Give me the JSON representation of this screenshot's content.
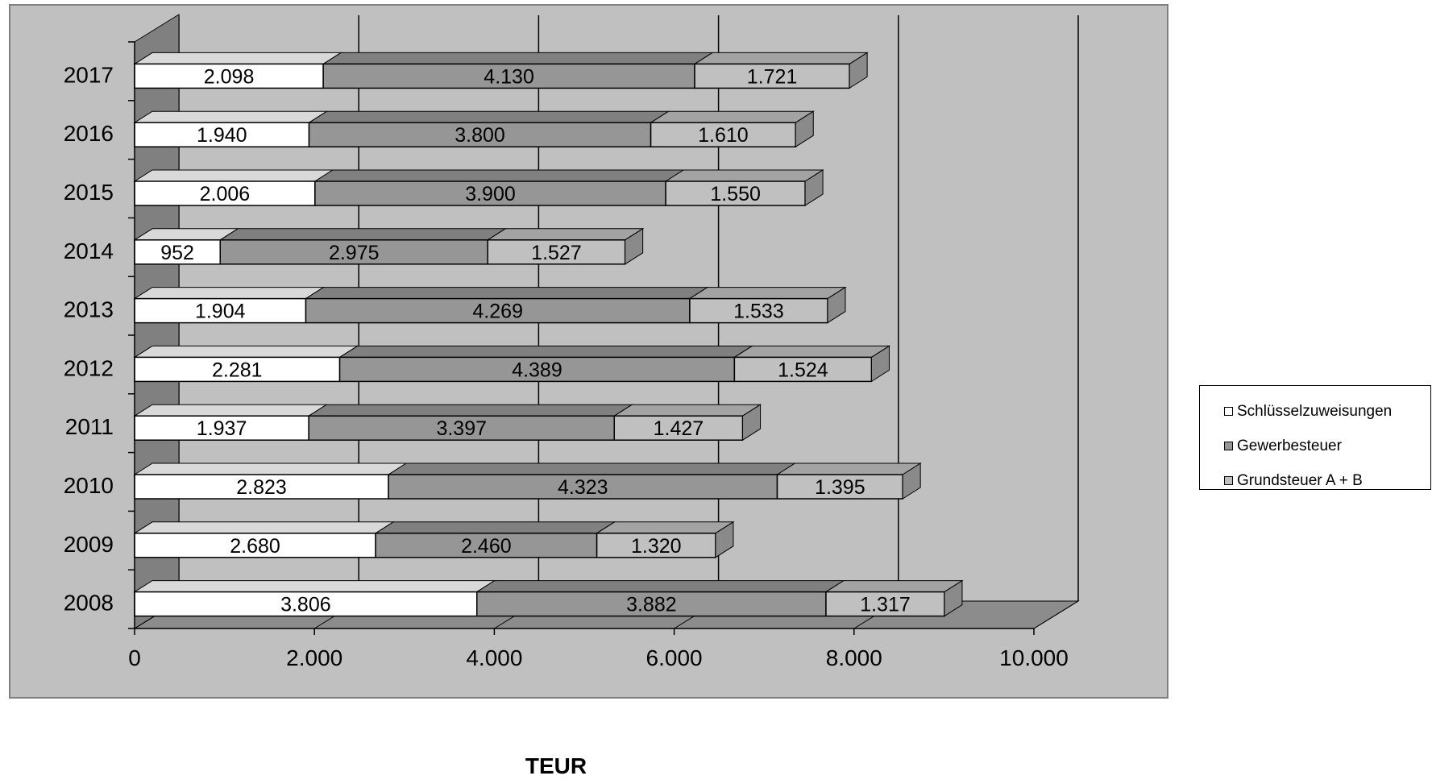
{
  "chart_data": {
    "type": "bar",
    "orientation": "horizontal",
    "stacked": true,
    "style": "3d",
    "categories": [
      "2008",
      "2009",
      "2010",
      "2011",
      "2012",
      "2013",
      "2014",
      "2015",
      "2016",
      "2017"
    ],
    "series": [
      {
        "name": "Schlüsselzuweisungen",
        "color": "#ffffff",
        "values": [
          3806,
          2680,
          2823,
          1937,
          2281,
          1904,
          952,
          2006,
          1940,
          2098
        ],
        "labels": [
          "3.806",
          "2.680",
          "2.823",
          "1.937",
          "2.281",
          "1.904",
          "952",
          "2.006",
          "1.940",
          "2.098"
        ]
      },
      {
        "name": "Gewerbesteuer",
        "color": "#969696",
        "values": [
          3882,
          2460,
          4323,
          3397,
          4389,
          4269,
          2975,
          3900,
          3800,
          4130
        ],
        "labels": [
          "3.882",
          "2.460",
          "4.323",
          "3.397",
          "4.389",
          "4.269",
          "2.975",
          "3.900",
          "3.800",
          "4.130"
        ]
      },
      {
        "name": "Grundsteuer A + B",
        "color": "#c0c0c0",
        "values": [
          1317,
          1320,
          1395,
          1427,
          1524,
          1533,
          1527,
          1550,
          1610,
          1721
        ],
        "labels": [
          "1.317",
          "1.320",
          "1.395",
          "1.427",
          "1.524",
          "1.533",
          "1.527",
          "1.550",
          "1.610",
          "1.721"
        ]
      }
    ],
    "x_ticks": [
      "0",
      "2.000",
      "4.000",
      "6.000",
      "8.000",
      "10.000"
    ],
    "x_tick_values": [
      0,
      2000,
      4000,
      6000,
      8000,
      10000
    ],
    "xlim": [
      0,
      10000
    ],
    "xlabel": "TEUR",
    "title": "",
    "grid": true,
    "legend_position": "right",
    "colors": {
      "plot_area": "#c0c0c0",
      "floor": "#8c8c8c",
      "wall_side": "#808080"
    }
  }
}
